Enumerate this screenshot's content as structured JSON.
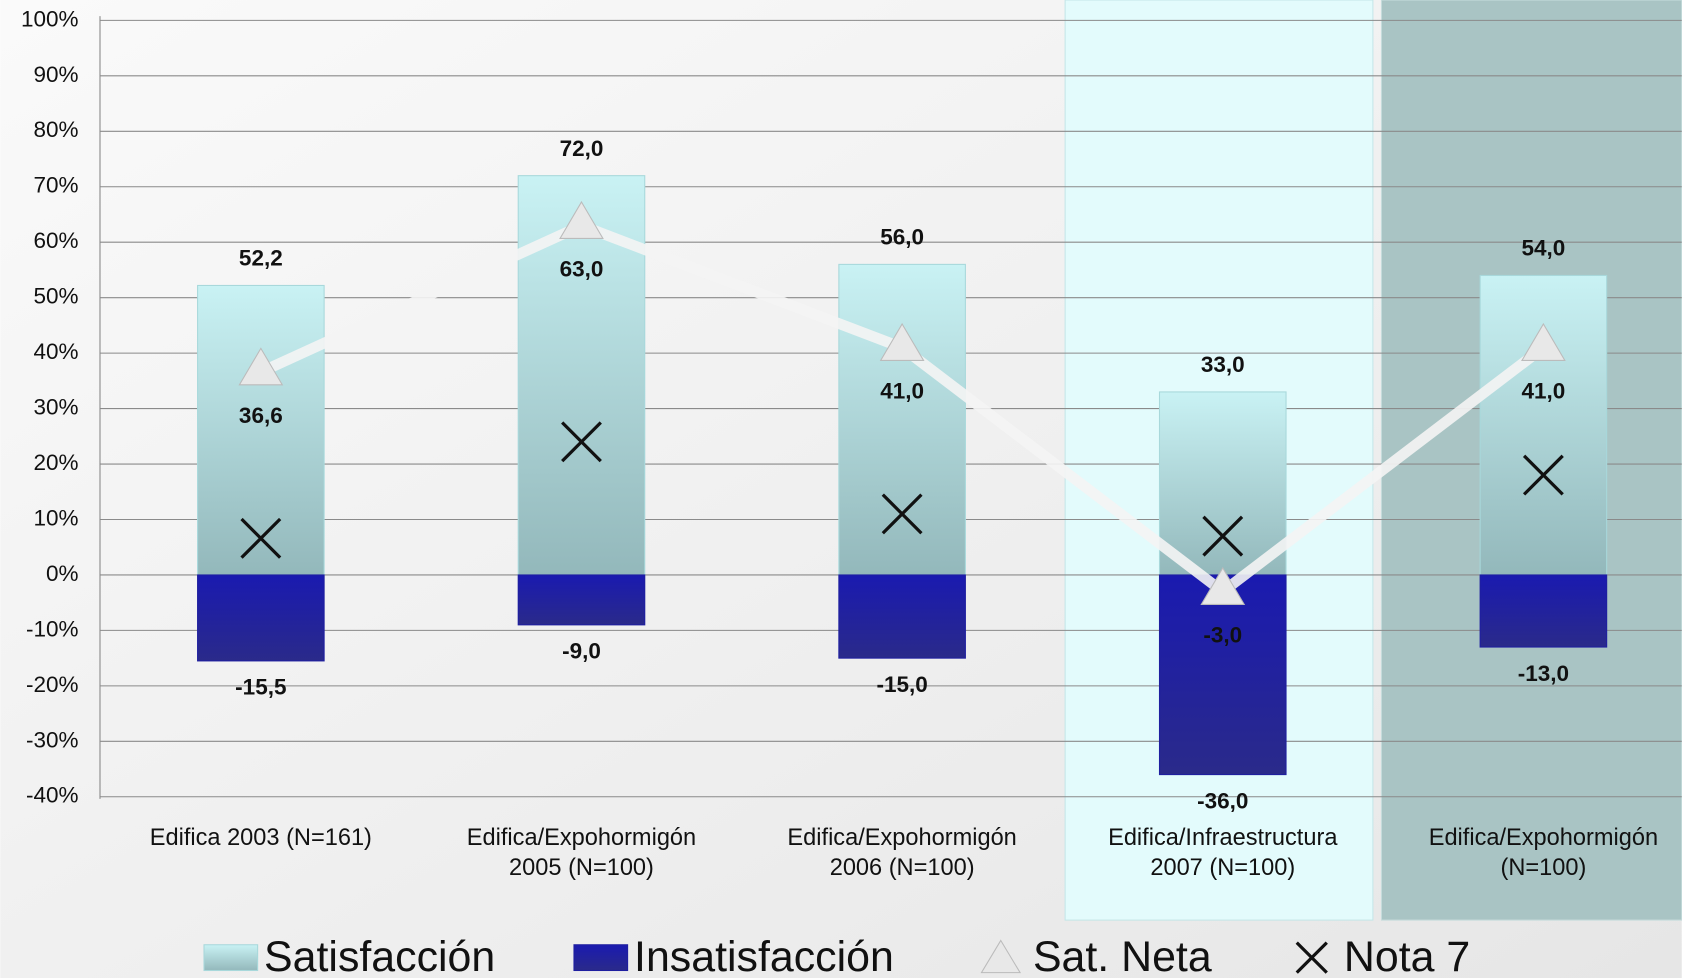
{
  "chart_data": {
    "type": "bar",
    "categories": [
      [
        "Edifica 2003 (N=161)"
      ],
      [
        "Edifica/Expohormigón",
        "2005 (N=100)"
      ],
      [
        "Edifica/Expohormigón",
        "2006 (N=100)"
      ],
      [
        "Edifica/Infraestructura",
        "2007 (N=100)"
      ],
      [
        "Edifica/Expohormigón",
        "(N=100)"
      ]
    ],
    "series": [
      {
        "name": "Satisfacción",
        "type": "bar",
        "color": "#a8d8db",
        "values": [
          52.2,
          72,
          56,
          33,
          54
        ],
        "value_labels": [
          "52,2",
          "72,0",
          "56,0",
          "33,0",
          "54,0"
        ]
      },
      {
        "name": "Insatisfacción",
        "type": "bar",
        "color": "#1f1fa0",
        "values": [
          -15.5,
          -9,
          -15,
          -36,
          -13
        ],
        "value_labels": [
          "-15,5",
          "-9,0",
          "-15,0",
          "-36,0",
          "-13,0"
        ]
      },
      {
        "name": "Sat. Neta",
        "type": "line",
        "color": "#f4f4f4",
        "values": [
          36.6,
          63,
          41,
          -3,
          41
        ],
        "value_labels": [
          "36,6",
          "63,0",
          "41,0",
          "-3,0",
          "41,0"
        ]
      },
      {
        "name": "Nota 7",
        "type": "scatter",
        "color": "#111111",
        "values": [
          6.6,
          24,
          11,
          7,
          18
        ]
      }
    ],
    "ylim": [
      -40,
      100
    ],
    "yticks": [
      {
        "value": -40,
        "label": "-40%"
      },
      {
        "value": -30,
        "label": "-30%"
      },
      {
        "value": -20,
        "label": "-20%"
      },
      {
        "value": -10,
        "label": "-10%"
      },
      {
        "value": 0,
        "label": "0%"
      },
      {
        "value": 10,
        "label": "10%"
      },
      {
        "value": 20,
        "label": "20%"
      },
      {
        "value": 30,
        "label": "30%"
      },
      {
        "value": 40,
        "label": "40%"
      },
      {
        "value": 50,
        "label": "50%"
      },
      {
        "value": 60,
        "label": "60%"
      },
      {
        "value": 70,
        "label": "70%"
      },
      {
        "value": 80,
        "label": "80%"
      },
      {
        "value": 90,
        "label": "90%"
      },
      {
        "value": 100,
        "label": "100%"
      }
    ],
    "grid": true
  }
}
